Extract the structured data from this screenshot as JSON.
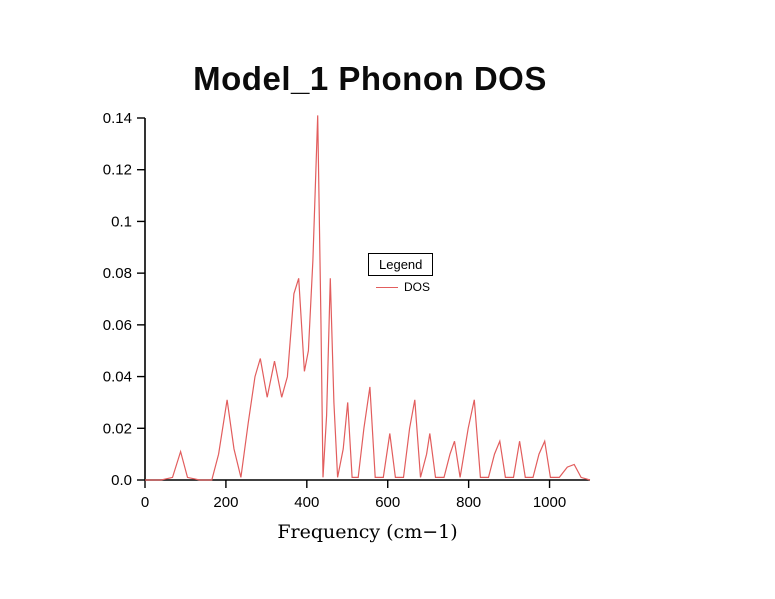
{
  "chart_data": {
    "type": "line",
    "title": "Model_1 Phonon DOS",
    "xlabel": "Frequency (cm−1)",
    "ylabel": "",
    "xlim": [
      0,
      1100
    ],
    "ylim": [
      0,
      0.14
    ],
    "grid": false,
    "frame": "axes-only",
    "x_ticks": [
      0,
      200,
      400,
      600,
      800,
      1000
    ],
    "x_tick_labels": [
      "0",
      "200",
      "400",
      "600",
      "800",
      "1000"
    ],
    "y_ticks": [
      0,
      0.02,
      0.04,
      0.06,
      0.08,
      0.1,
      0.12,
      0.14
    ],
    "y_tick_labels": [
      "0.0",
      "0.02",
      "0.04",
      "0.06",
      "0.08",
      "0.1",
      "0.12",
      "0.14"
    ],
    "legend": {
      "title": "Legend",
      "position": "inside-right-center",
      "entries": [
        {
          "label": "DOS",
          "color": "#e25d5d"
        }
      ]
    },
    "series": [
      {
        "name": "DOS",
        "color": "#e25d5d",
        "points": [
          [
            0,
            0
          ],
          [
            40,
            0
          ],
          [
            68,
            0.001
          ],
          [
            88,
            0.011
          ],
          [
            105,
            0.001
          ],
          [
            135,
            0
          ],
          [
            165,
            0
          ],
          [
            182,
            0.01
          ],
          [
            203,
            0.031
          ],
          [
            220,
            0.012
          ],
          [
            237,
            0.001
          ],
          [
            255,
            0.022
          ],
          [
            272,
            0.04
          ],
          [
            285,
            0.047
          ],
          [
            302,
            0.032
          ],
          [
            320,
            0.046
          ],
          [
            338,
            0.032
          ],
          [
            352,
            0.04
          ],
          [
            368,
            0.072
          ],
          [
            380,
            0.078
          ],
          [
            394,
            0.042
          ],
          [
            404,
            0.05
          ],
          [
            415,
            0.085
          ],
          [
            427,
            0.141
          ],
          [
            435,
            0.06
          ],
          [
            440,
            0.001
          ],
          [
            449,
            0.025
          ],
          [
            458,
            0.078
          ],
          [
            467,
            0.03
          ],
          [
            476,
            0.001
          ],
          [
            490,
            0.012
          ],
          [
            501,
            0.03
          ],
          [
            512,
            0.001
          ],
          [
            527,
            0.001
          ],
          [
            541,
            0.02
          ],
          [
            556,
            0.036
          ],
          [
            569,
            0.001
          ],
          [
            589,
            0.001
          ],
          [
            605,
            0.018
          ],
          [
            619,
            0.001
          ],
          [
            639,
            0.001
          ],
          [
            654,
            0.02
          ],
          [
            667,
            0.031
          ],
          [
            681,
            0.001
          ],
          [
            696,
            0.01
          ],
          [
            704,
            0.018
          ],
          [
            718,
            0.001
          ],
          [
            739,
            0.001
          ],
          [
            754,
            0.01
          ],
          [
            765,
            0.015
          ],
          [
            779,
            0.001
          ],
          [
            799,
            0.02
          ],
          [
            814,
            0.031
          ],
          [
            829,
            0.001
          ],
          [
            849,
            0.001
          ],
          [
            864,
            0.01
          ],
          [
            877,
            0.015
          ],
          [
            891,
            0.001
          ],
          [
            911,
            0.001
          ],
          [
            926,
            0.015
          ],
          [
            940,
            0.001
          ],
          [
            959,
            0.001
          ],
          [
            974,
            0.01
          ],
          [
            988,
            0.015
          ],
          [
            1002,
            0.001
          ],
          [
            1024,
            0.001
          ],
          [
            1044,
            0.005
          ],
          [
            1061,
            0.006
          ],
          [
            1078,
            0.001
          ],
          [
            1100,
            0
          ]
        ]
      }
    ]
  }
}
